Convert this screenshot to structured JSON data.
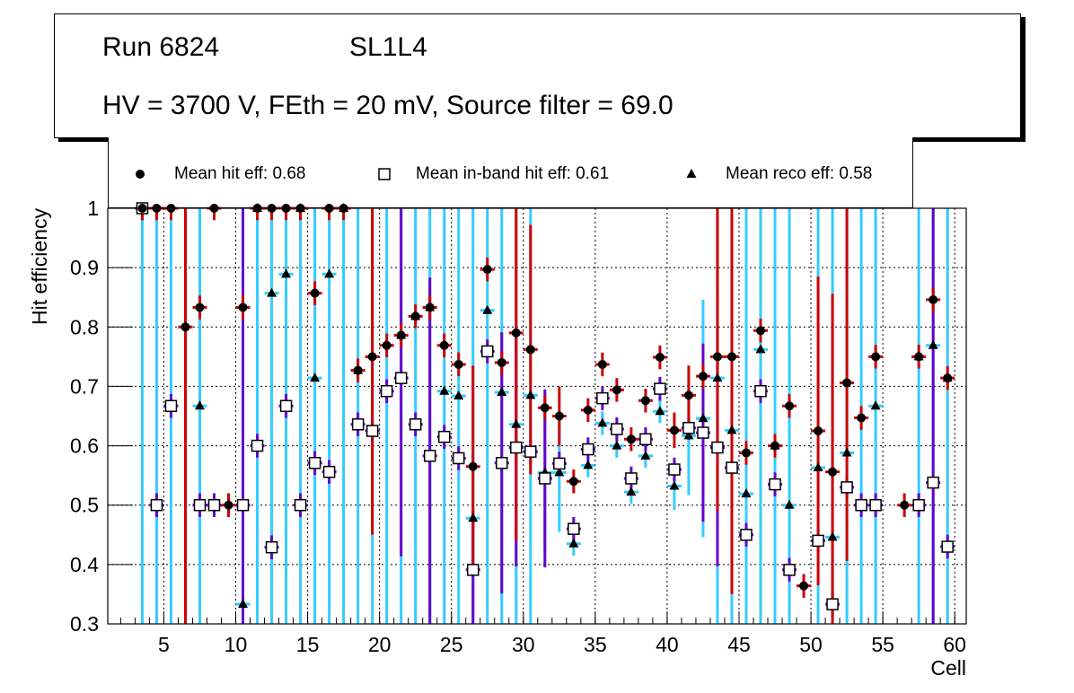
{
  "header": {
    "run": "Run 6824",
    "layer": "SL1L4",
    "conditions": "HV = 3700 V, FEth = 20 mV, Source filter = 69.0"
  },
  "legend": [
    {
      "label": "Mean hit  eff: 0.68",
      "marker": "circle"
    },
    {
      "label": "Mean in-band hit eff: 0.61",
      "marker": "open-square"
    },
    {
      "label": "Mean reco eff: 0.58",
      "marker": "triangle"
    }
  ],
  "colors": {
    "hit_err": "#cc0000",
    "inband_err": "#6600cc",
    "reco_err": "#33ccff",
    "marker": "#000000"
  },
  "chart_data": {
    "type": "scatter",
    "xlabel": "Cell",
    "ylabel": "Hit efficiency",
    "xlim": [
      1.1,
      60.8
    ],
    "ylim": [
      0.3,
      1.0
    ],
    "grid": true,
    "legend_position": "top",
    "xticks": [
      "5",
      "10",
      "15",
      "20",
      "25",
      "30",
      "35",
      "40",
      "45",
      "50",
      "55",
      "60"
    ],
    "yticks": [
      "0.3",
      "0.4",
      "0.5",
      "0.6",
      "0.7",
      "0.8",
      "0.9",
      "1"
    ],
    "x": [
      3.5,
      4.5,
      5.5,
      6.5,
      7.5,
      8.5,
      9.5,
      10.5,
      11.5,
      12.5,
      13.5,
      14.5,
      15.5,
      16.5,
      17.5,
      18.5,
      19.5,
      20.5,
      21.5,
      22.5,
      23.5,
      24.5,
      25.5,
      26.5,
      27.5,
      28.5,
      29.5,
      30.5,
      31.5,
      32.5,
      33.5,
      34.5,
      35.5,
      36.5,
      37.5,
      38.5,
      39.5,
      40.5,
      41.5,
      42.5,
      43.5,
      44.5,
      45.5,
      46.5,
      47.5,
      48.5,
      49.5,
      50.5,
      51.5,
      52.5,
      53.5,
      54.5,
      55.5,
      56.5,
      57.5,
      58.5,
      59.5
    ],
    "series": [
      {
        "name": "Mean hit eff",
        "marker": "circle",
        "values": [
          1,
          1,
          1,
          0.8,
          0.833,
          1,
          0.5,
          0.833,
          1,
          1,
          1,
          1,
          0.857,
          1,
          1,
          0.727,
          0.75,
          0.769,
          0.786,
          0.818,
          0.833,
          0.769,
          0.737,
          0.565,
          0.897,
          0.74,
          0.79,
          0.762,
          0.664,
          0.65,
          0.54,
          0.66,
          0.737,
          0.694,
          0.611,
          0.676,
          0.749,
          0.626,
          0.685,
          0.717,
          0.75,
          0.75,
          0.588,
          0.794,
          0.6,
          0.667,
          0.364,
          0.625,
          0.556,
          0.706,
          0.647,
          0.75,
          null,
          0.5,
          0.75,
          0.846,
          0.714
        ],
        "err": [
          0.02,
          0.02,
          0.02,
          0.8,
          0.02,
          0.02,
          0.02,
          0.02,
          0.02,
          0.02,
          0.02,
          0.02,
          0.02,
          0.02,
          0.02,
          0.02,
          0.3,
          0.02,
          0.02,
          0.02,
          0.02,
          0.02,
          0.02,
          0.17,
          0.02,
          0.02,
          0.35,
          0.21,
          0.02,
          0.05,
          0.02,
          0.02,
          0.02,
          0.02,
          0.02,
          0.02,
          0.02,
          0.03,
          0.05,
          0.02,
          0.26,
          0.4,
          0.02,
          0.02,
          0.02,
          0.02,
          0.02,
          0.26,
          0.3,
          0.3,
          0.02,
          0.02,
          null,
          0.02,
          0.02,
          0.02,
          0.02
        ]
      },
      {
        "name": "Mean in-band hit eff",
        "marker": "open-square",
        "values": [
          1,
          0.5,
          0.667,
          null,
          0.5,
          0.5,
          null,
          0.5,
          0.6,
          0.429,
          0.667,
          0.5,
          0.571,
          0.556,
          null,
          0.636,
          0.625,
          0.692,
          0.714,
          0.636,
          0.583,
          0.615,
          0.579,
          0.391,
          0.759,
          0.571,
          0.597,
          0.59,
          0.545,
          0.57,
          0.46,
          0.594,
          0.68,
          0.628,
          0.545,
          0.611,
          0.696,
          0.56,
          0.63,
          0.622,
          0.597,
          0.563,
          0.45,
          0.692,
          0.535,
          0.391,
          null,
          0.44,
          0.333,
          0.53,
          0.5,
          0.5,
          null,
          null,
          0.5,
          0.538,
          0.43
        ],
        "err": [
          0.02,
          0.02,
          0.02,
          null,
          0.02,
          0.02,
          null,
          0.5,
          0.02,
          0.02,
          0.02,
          0.02,
          0.02,
          0.02,
          null,
          0.02,
          0.02,
          0.02,
          0.3,
          0.02,
          0.3,
          0.02,
          0.02,
          0.1,
          0.02,
          0.22,
          0.2,
          0.02,
          0.15,
          0.02,
          0.02,
          0.02,
          0.02,
          0.02,
          0.02,
          0.02,
          0.02,
          0.02,
          0.02,
          0.15,
          0.2,
          0.1,
          0.02,
          0.02,
          0.02,
          0.02,
          null,
          0.02,
          0.02,
          0.02,
          0.02,
          0.02,
          null,
          null,
          0.02,
          0.5,
          0.02
        ]
      },
      {
        "name": "Mean reco eff",
        "marker": "triangle",
        "values": [
          1,
          0.5,
          0.667,
          null,
          0.667,
          null,
          null,
          0.333,
          1,
          0.857,
          0.889,
          1,
          0.714,
          0.889,
          1,
          0.727,
          0.625,
          0.692,
          0.786,
          0.818,
          0.833,
          0.692,
          0.684,
          0.478,
          0.828,
          0.69,
          0.636,
          0.685,
          0.555,
          0.555,
          0.435,
          0.567,
          0.638,
          0.6,
          0.522,
          0.583,
          0.658,
          0.532,
          0.617,
          0.646,
          0.714,
          0.626,
          0.519,
          0.762,
          0.6,
          0.5,
          null,
          0.563,
          0.446,
          0.588,
          0.5,
          0.667,
          null,
          null,
          0.75,
          0.769,
          0.714
        ],
        "err": [
          0.7,
          0.7,
          0.7,
          null,
          0.7,
          null,
          null,
          0.7,
          0.7,
          0.7,
          0.7,
          0.7,
          0.7,
          0.7,
          0.7,
          0.7,
          0.7,
          0.7,
          0.7,
          0.7,
          0.7,
          0.7,
          0.7,
          0.7,
          0.7,
          0.6,
          0.6,
          0.5,
          0.13,
          0.1,
          0.02,
          0.02,
          0.02,
          0.02,
          0.02,
          0.02,
          0.02,
          0.04,
          0.1,
          0.2,
          0.5,
          0.7,
          0.7,
          0.7,
          0.7,
          0.7,
          0.7,
          0.7,
          0.7,
          0.7,
          0.7,
          0.7,
          null,
          0.5,
          0.7,
          0.7,
          0.7
        ]
      }
    ]
  }
}
